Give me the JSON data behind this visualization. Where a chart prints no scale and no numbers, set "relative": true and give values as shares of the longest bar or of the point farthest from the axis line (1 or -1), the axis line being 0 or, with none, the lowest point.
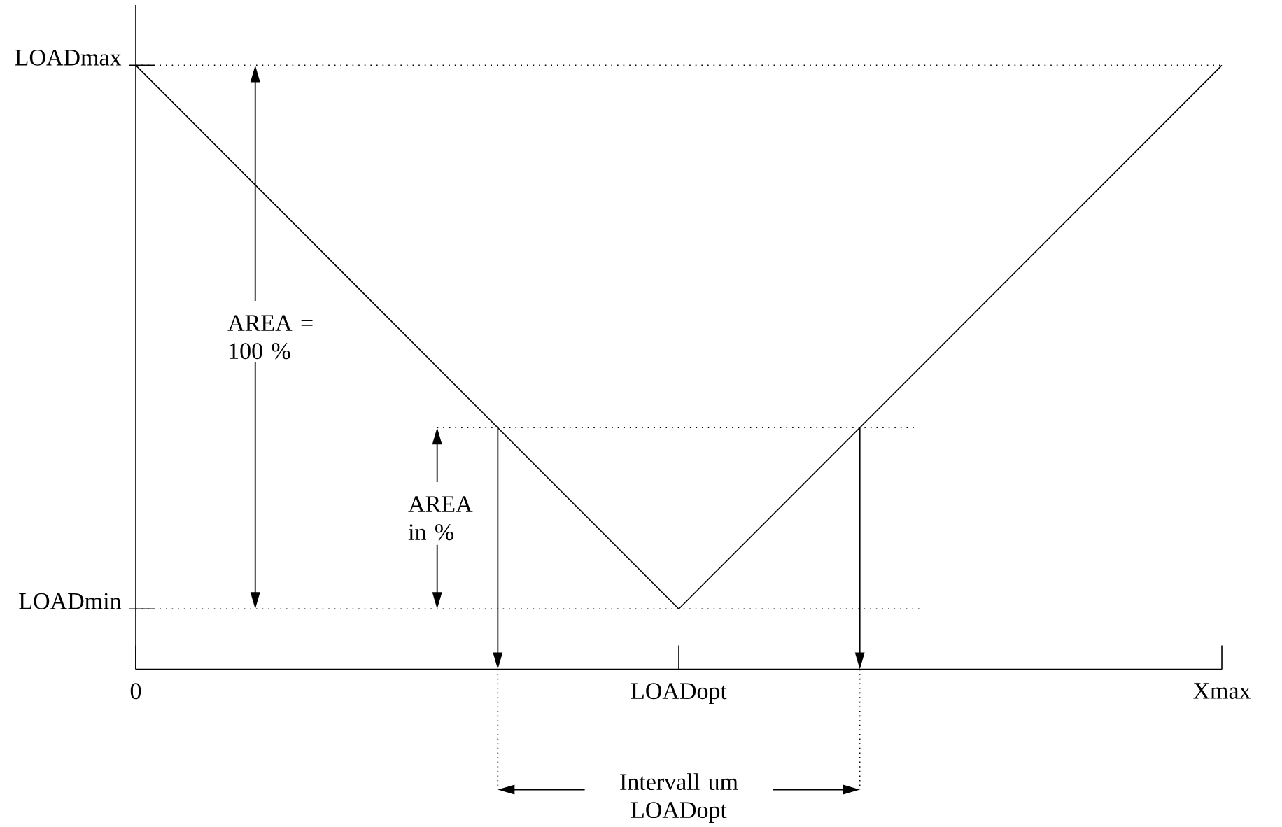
{
  "chart_data": {
    "type": "line",
    "relative": true,
    "categories": [
      "0",
      "LOADopt",
      "Xmax"
    ],
    "series": [
      {
        "color": "#000000",
        "values": [
          1,
          0.1,
          1
        ]
      }
    ],
    "ref_lines": [
      {
        "axis": "y",
        "value": 1,
        "label": "LOADmax",
        "line_style": "dotted"
      },
      {
        "axis": "y",
        "value": 0.1,
        "label": "LOADmin",
        "line_style": "dotted"
      },
      {
        "axis": "y",
        "value": 0.4,
        "line_style": "dotted"
      }
    ],
    "annotations": [
      "AREA = 100 %",
      "AREA in %",
      "Intervall um LOADopt"
    ],
    "marker": "none",
    "line_style": "solid"
  }
}
